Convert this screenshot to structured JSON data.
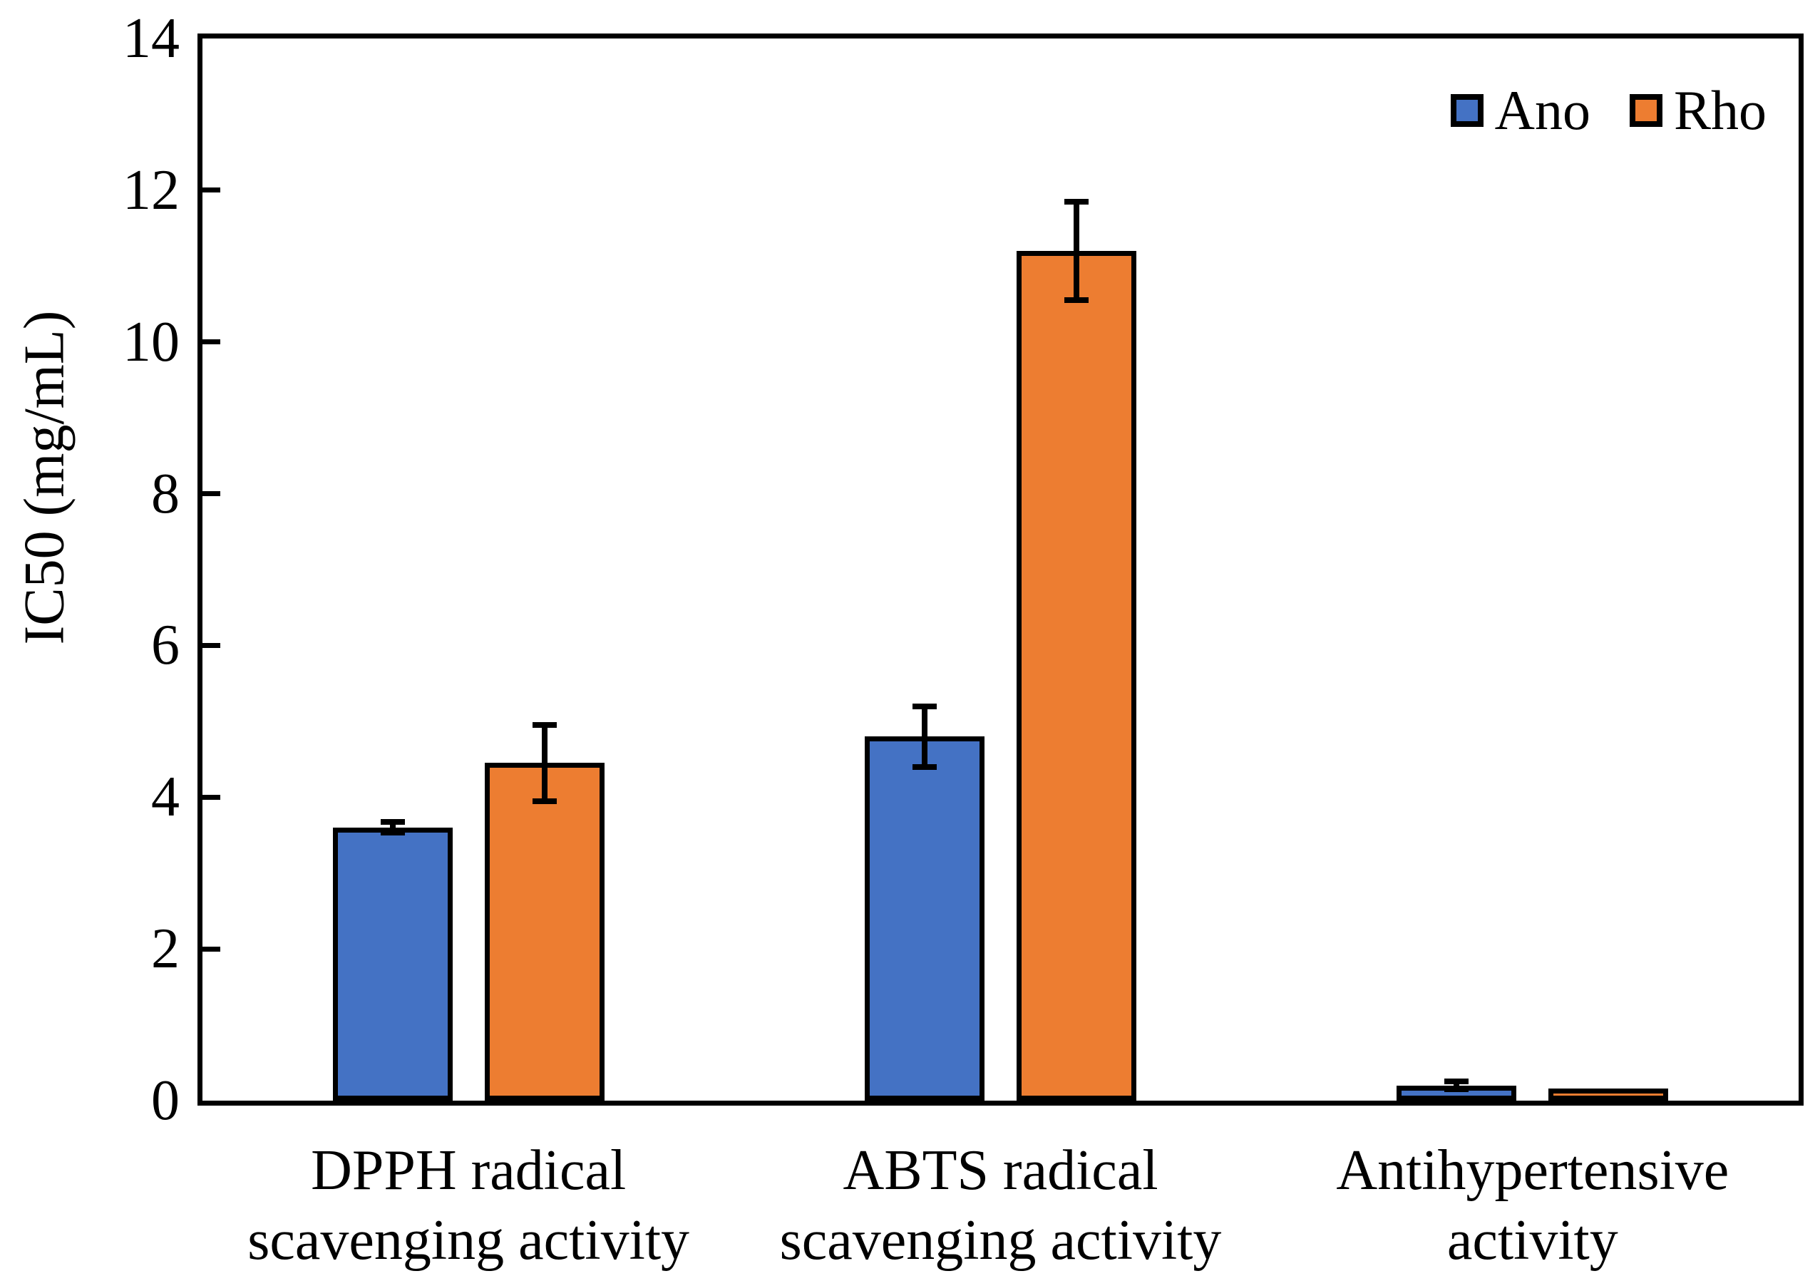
{
  "chart_data": {
    "type": "bar",
    "ylabel": "IC50 (mg/mL)",
    "xlabel": "",
    "ylim": [
      0,
      14
    ],
    "yticks": [
      0,
      2,
      4,
      6,
      8,
      10,
      12,
      14
    ],
    "grid": false,
    "legend_position": "top-right-inside",
    "plot_frame_color": "#000000",
    "background_color": "#ffffff",
    "categories": [
      [
        "DPPH radical",
        "scavenging activity"
      ],
      [
        "ABTS radical",
        "scavenging activity"
      ],
      [
        "Antihypertensive",
        "activity"
      ]
    ],
    "series": [
      {
        "name": "Ano",
        "color": "#4472C4",
        "values": [
          3.6,
          4.8,
          0.2
        ],
        "errors": [
          0.07,
          0.4,
          0.05
        ]
      },
      {
        "name": "Rho",
        "color": "#ED7D31",
        "values": [
          4.45,
          11.2,
          0.16
        ],
        "errors": [
          0.5,
          0.65,
          0
        ]
      }
    ]
  }
}
